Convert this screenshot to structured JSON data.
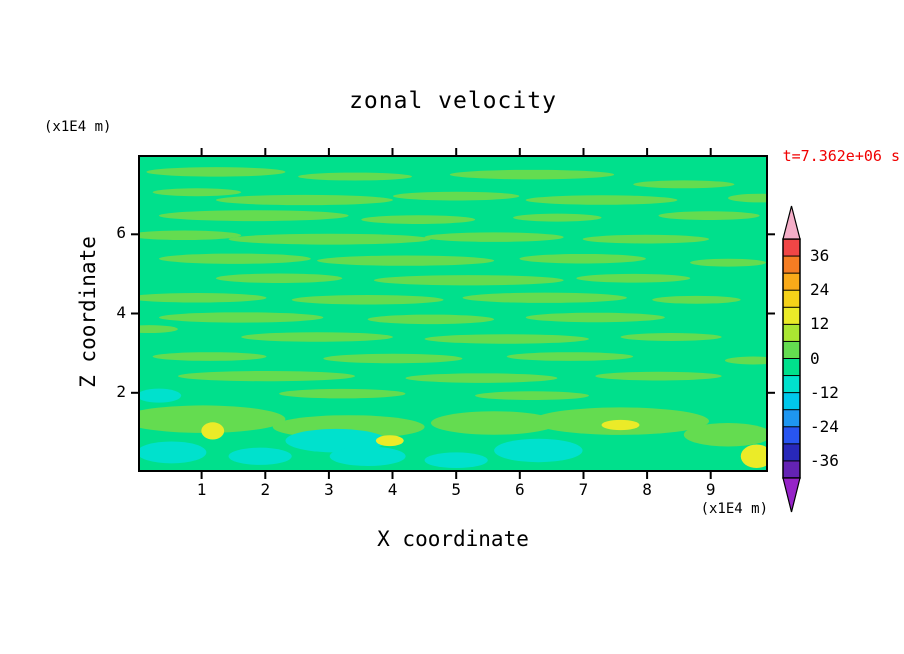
{
  "chart_data": {
    "type": "contour",
    "title": "zonal velocity",
    "time_label": "t=7.362e+06 s",
    "time_color": "#f00000",
    "xlabel": "X coordinate",
    "x_unit": "(x1E4 m)",
    "ylabel": "Z coordinate",
    "y_unit": "(x1E4 m)",
    "xlim": [
      0,
      9.9
    ],
    "ylim": [
      0,
      8
    ],
    "x_ticks": [
      1,
      2,
      3,
      4,
      5,
      6,
      7,
      8,
      9
    ],
    "y_ticks": [
      2,
      4,
      6
    ],
    "grid": false,
    "colorbar": {
      "position": "right",
      "labels": [
        36,
        24,
        12,
        0,
        -12,
        -24,
        -36
      ],
      "range": [
        -42,
        42
      ],
      "step": 6,
      "colors_top_to_bottom": [
        "#f04646",
        "#f57d23",
        "#faaa19",
        "#f5d219",
        "#ebeb28",
        "#aae632",
        "#64dc50",
        "#00e08c",
        "#00e1cd",
        "#00c8eb",
        "#1e96f0",
        "#2855f0",
        "#2828b9",
        "#6423b4"
      ],
      "over_color": "#f5aec8",
      "under_color": "#9623c8"
    },
    "background_value": -3,
    "features": [
      {
        "x": 1.2,
        "z": 7.62,
        "rx": 1.1,
        "rz": 0.12,
        "v": 3
      },
      {
        "x": 3.4,
        "z": 7.5,
        "rx": 0.9,
        "rz": 0.1,
        "v": 3
      },
      {
        "x": 6.2,
        "z": 7.55,
        "rx": 1.3,
        "rz": 0.12,
        "v": 3
      },
      {
        "x": 8.6,
        "z": 7.3,
        "rx": 0.8,
        "rz": 0.1,
        "v": 3
      },
      {
        "x": 0.9,
        "z": 7.1,
        "rx": 0.7,
        "rz": 0.1,
        "v": 3
      },
      {
        "x": 2.6,
        "z": 6.9,
        "rx": 1.4,
        "rz": 0.13,
        "v": 3
      },
      {
        "x": 5.0,
        "z": 7.0,
        "rx": 1.0,
        "rz": 0.11,
        "v": 3
      },
      {
        "x": 7.3,
        "z": 6.9,
        "rx": 1.2,
        "rz": 0.12,
        "v": 3
      },
      {
        "x": 9.8,
        "z": 6.95,
        "rx": 0.5,
        "rz": 0.11,
        "v": 3
      },
      {
        "x": 1.8,
        "z": 6.5,
        "rx": 1.5,
        "rz": 0.14,
        "v": 3
      },
      {
        "x": 4.4,
        "z": 6.4,
        "rx": 0.9,
        "rz": 0.11,
        "v": 3
      },
      {
        "x": 6.6,
        "z": 6.45,
        "rx": 0.7,
        "rz": 0.1,
        "v": 3
      },
      {
        "x": 9.0,
        "z": 6.5,
        "rx": 0.8,
        "rz": 0.11,
        "v": 3
      },
      {
        "x": 0.7,
        "z": 6.0,
        "rx": 0.9,
        "rz": 0.12,
        "v": 3
      },
      {
        "x": 3.0,
        "z": 5.9,
        "rx": 1.6,
        "rz": 0.14,
        "v": 3
      },
      {
        "x": 5.6,
        "z": 5.95,
        "rx": 1.1,
        "rz": 0.12,
        "v": 3
      },
      {
        "x": 8.0,
        "z": 5.9,
        "rx": 1.0,
        "rz": 0.11,
        "v": 3
      },
      {
        "x": 1.5,
        "z": 5.4,
        "rx": 1.2,
        "rz": 0.13,
        "v": 3
      },
      {
        "x": 4.2,
        "z": 5.35,
        "rx": 1.4,
        "rz": 0.13,
        "v": 3
      },
      {
        "x": 7.0,
        "z": 5.4,
        "rx": 1.0,
        "rz": 0.12,
        "v": 3
      },
      {
        "x": 9.3,
        "z": 5.3,
        "rx": 0.6,
        "rz": 0.1,
        "v": 3
      },
      {
        "x": 2.2,
        "z": 4.9,
        "rx": 1.0,
        "rz": 0.12,
        "v": 3
      },
      {
        "x": 5.2,
        "z": 4.85,
        "rx": 1.5,
        "rz": 0.13,
        "v": 3
      },
      {
        "x": 7.8,
        "z": 4.9,
        "rx": 0.9,
        "rz": 0.11,
        "v": 3
      },
      {
        "x": 0.9,
        "z": 4.4,
        "rx": 1.1,
        "rz": 0.12,
        "v": 3
      },
      {
        "x": 3.6,
        "z": 4.35,
        "rx": 1.2,
        "rz": 0.12,
        "v": 3
      },
      {
        "x": 6.4,
        "z": 4.4,
        "rx": 1.3,
        "rz": 0.13,
        "v": 3
      },
      {
        "x": 8.8,
        "z": 4.35,
        "rx": 0.7,
        "rz": 0.1,
        "v": 3
      },
      {
        "x": 1.6,
        "z": 3.9,
        "rx": 1.3,
        "rz": 0.13,
        "v": 3
      },
      {
        "x": 4.6,
        "z": 3.85,
        "rx": 1.0,
        "rz": 0.12,
        "v": 3
      },
      {
        "x": 7.2,
        "z": 3.9,
        "rx": 1.1,
        "rz": 0.12,
        "v": 3
      },
      {
        "x": 0.15,
        "z": 3.6,
        "rx": 0.45,
        "rz": 0.1,
        "v": 3
      },
      {
        "x": 2.8,
        "z": 3.4,
        "rx": 1.2,
        "rz": 0.12,
        "v": 3
      },
      {
        "x": 5.8,
        "z": 3.35,
        "rx": 1.3,
        "rz": 0.12,
        "v": 3
      },
      {
        "x": 8.4,
        "z": 3.4,
        "rx": 0.8,
        "rz": 0.1,
        "v": 3
      },
      {
        "x": 1.1,
        "z": 2.9,
        "rx": 0.9,
        "rz": 0.11,
        "v": 3
      },
      {
        "x": 4.0,
        "z": 2.85,
        "rx": 1.1,
        "rz": 0.12,
        "v": 3
      },
      {
        "x": 6.8,
        "z": 2.9,
        "rx": 1.0,
        "rz": 0.11,
        "v": 3
      },
      {
        "x": 9.7,
        "z": 2.8,
        "rx": 0.45,
        "rz": 0.1,
        "v": 3
      },
      {
        "x": 2.0,
        "z": 2.4,
        "rx": 1.4,
        "rz": 0.13,
        "v": 3
      },
      {
        "x": 5.4,
        "z": 2.35,
        "rx": 1.2,
        "rz": 0.12,
        "v": 3
      },
      {
        "x": 8.2,
        "z": 2.4,
        "rx": 1.0,
        "rz": 0.11,
        "v": 3
      },
      {
        "x": 3.2,
        "z": 1.95,
        "rx": 1.0,
        "rz": 0.12,
        "v": 3
      },
      {
        "x": 6.2,
        "z": 1.9,
        "rx": 0.9,
        "rz": 0.11,
        "v": 3
      },
      {
        "x": 1.0,
        "z": 1.3,
        "rx": 1.3,
        "rz": 0.35,
        "v": 3
      },
      {
        "x": 3.3,
        "z": 1.1,
        "rx": 1.2,
        "rz": 0.3,
        "v": 3
      },
      {
        "x": 5.6,
        "z": 1.2,
        "rx": 1.0,
        "rz": 0.3,
        "v": 3
      },
      {
        "x": 7.6,
        "z": 1.25,
        "rx": 1.4,
        "rz": 0.35,
        "v": 3
      },
      {
        "x": 9.3,
        "z": 0.9,
        "rx": 0.7,
        "rz": 0.3,
        "v": 3
      },
      {
        "x": 0.5,
        "z": 0.45,
        "rx": 0.55,
        "rz": 0.28,
        "v": -9
      },
      {
        "x": 1.9,
        "z": 0.35,
        "rx": 0.5,
        "rz": 0.22,
        "v": -9
      },
      {
        "x": 3.1,
        "z": 0.75,
        "rx": 0.8,
        "rz": 0.3,
        "v": -9
      },
      {
        "x": 3.6,
        "z": 0.35,
        "rx": 0.6,
        "rz": 0.25,
        "v": -9
      },
      {
        "x": 5.0,
        "z": 0.25,
        "rx": 0.5,
        "rz": 0.2,
        "v": -9
      },
      {
        "x": 6.3,
        "z": 0.5,
        "rx": 0.7,
        "rz": 0.3,
        "v": -9
      },
      {
        "x": 0.3,
        "z": 1.9,
        "rx": 0.35,
        "rz": 0.18,
        "v": -9
      },
      {
        "x": 1.15,
        "z": 1.0,
        "rx": 0.18,
        "rz": 0.22,
        "v": 14
      },
      {
        "x": 3.95,
        "z": 0.75,
        "rx": 0.22,
        "rz": 0.14,
        "v": 14
      },
      {
        "x": 7.6,
        "z": 1.15,
        "rx": 0.3,
        "rz": 0.13,
        "v": 14
      },
      {
        "x": 9.75,
        "z": 0.35,
        "rx": 0.25,
        "rz": 0.3,
        "v": 14
      }
    ]
  }
}
